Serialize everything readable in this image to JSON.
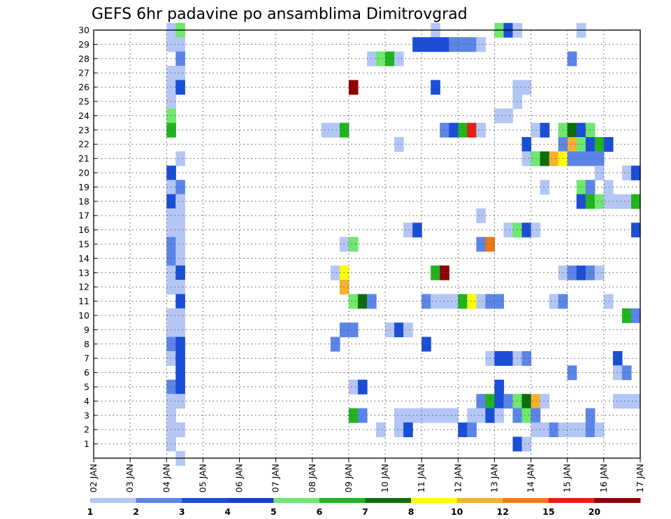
{
  "chart_data": {
    "type": "heatmap",
    "title": "GEFS 6hr padavine po ansamblima Dimitrovgrad",
    "xlabel": "",
    "ylabel": "",
    "x_tick_labels": [
      "02 JAN",
      "03 JAN",
      "04 JAN",
      "05 JAN",
      "06 JAN",
      "07 JAN",
      "08 JAN",
      "09 JAN",
      "10 JAN",
      "11 JAN",
      "12 JAN",
      "13 JAN",
      "14 JAN",
      "15 JAN",
      "16 JAN",
      "17 JAN"
    ],
    "xlim_days": [
      2,
      17
    ],
    "x_step_hours": 6,
    "y_tick_labels": [
      "1",
      "2",
      "3",
      "4",
      "5",
      "6",
      "7",
      "8",
      "9",
      "10",
      "11",
      "12",
      "13",
      "14",
      "15",
      "16",
      "17",
      "18",
      "19",
      "20",
      "21",
      "22",
      "23",
      "24",
      "25",
      "26",
      "27",
      "28",
      "29",
      "30"
    ],
    "ylim": [
      0,
      30
    ],
    "grid": true,
    "legend": {
      "placement": "bottom",
      "labels": [
        "1",
        "2",
        "3",
        "4",
        "5",
        "6",
        "7",
        "8",
        "10",
        "12",
        "15",
        "20"
      ],
      "colors": [
        "#b3c6f5",
        "#5c85e8",
        "#1a4ed8",
        "#1a3dd6",
        "#6ee86e",
        "#20b420",
        "#0a6e0a",
        "#ffff00",
        "#f8b030",
        "#f07814",
        "#e02010",
        "#900000"
      ]
    },
    "cells": [
      [
        4.0,
        30,
        1
      ],
      [
        4.25,
        30,
        5
      ],
      [
        11.25,
        30,
        1
      ],
      [
        13.0,
        30,
        5
      ],
      [
        13.25,
        30,
        3
      ],
      [
        13.5,
        30,
        1
      ],
      [
        15.25,
        30,
        1
      ],
      [
        4.0,
        29,
        1
      ],
      [
        4.25,
        29,
        1
      ],
      [
        10.75,
        29,
        3
      ],
      [
        11.0,
        29,
        3
      ],
      [
        11.25,
        29,
        3
      ],
      [
        11.5,
        29,
        3
      ],
      [
        11.75,
        29,
        2
      ],
      [
        12.0,
        29,
        2
      ],
      [
        12.25,
        29,
        2
      ],
      [
        12.5,
        29,
        1
      ],
      [
        4.25,
        28,
        2
      ],
      [
        9.5,
        28,
        1
      ],
      [
        9.75,
        28,
        5
      ],
      [
        10.0,
        28,
        6
      ],
      [
        10.25,
        28,
        1
      ],
      [
        15.0,
        28,
        2
      ],
      [
        4.0,
        27,
        1
      ],
      [
        4.25,
        27,
        1
      ],
      [
        4.0,
        26,
        1
      ],
      [
        4.25,
        26,
        3
      ],
      [
        9.0,
        26,
        20
      ],
      [
        11.25,
        26,
        3
      ],
      [
        13.5,
        26,
        1
      ],
      [
        13.75,
        26,
        1
      ],
      [
        4.0,
        25,
        1
      ],
      [
        13.5,
        25,
        1
      ],
      [
        4.0,
        24,
        5
      ],
      [
        13.0,
        24,
        1
      ],
      [
        13.25,
        24,
        1
      ],
      [
        4.0,
        23,
        6
      ],
      [
        8.25,
        23,
        1
      ],
      [
        8.5,
        23,
        1
      ],
      [
        8.75,
        23,
        6
      ],
      [
        11.5,
        23,
        2
      ],
      [
        11.75,
        23,
        3
      ],
      [
        12.0,
        23,
        6
      ],
      [
        12.25,
        23,
        15
      ],
      [
        12.5,
        23,
        1
      ],
      [
        14.0,
        23,
        1
      ],
      [
        14.25,
        23,
        3
      ],
      [
        14.75,
        23,
        5
      ],
      [
        15.0,
        23,
        7
      ],
      [
        15.25,
        23,
        3
      ],
      [
        15.5,
        23,
        5
      ],
      [
        10.25,
        22,
        1
      ],
      [
        13.75,
        22,
        3
      ],
      [
        14.75,
        22,
        2
      ],
      [
        15.0,
        22,
        10
      ],
      [
        15.25,
        22,
        5
      ],
      [
        15.5,
        22,
        3
      ],
      [
        15.75,
        22,
        6
      ],
      [
        16.0,
        22,
        3
      ],
      [
        4.25,
        21,
        1
      ],
      [
        13.75,
        21,
        1
      ],
      [
        14.0,
        21,
        5
      ],
      [
        14.25,
        21,
        7
      ],
      [
        14.5,
        21,
        10
      ],
      [
        14.75,
        21,
        8
      ],
      [
        15.0,
        21,
        2
      ],
      [
        15.25,
        21,
        2
      ],
      [
        15.5,
        21,
        2
      ],
      [
        15.75,
        21,
        2
      ],
      [
        4.0,
        20,
        3
      ],
      [
        15.75,
        20,
        1
      ],
      [
        16.5,
        20,
        1
      ],
      [
        16.75,
        20,
        3
      ],
      [
        4.0,
        19,
        1
      ],
      [
        4.25,
        19,
        2
      ],
      [
        14.25,
        19,
        1
      ],
      [
        15.25,
        19,
        5
      ],
      [
        15.5,
        19,
        2
      ],
      [
        16.0,
        19,
        1
      ],
      [
        4.0,
        18,
        3
      ],
      [
        4.25,
        18,
        1
      ],
      [
        15.25,
        18,
        3
      ],
      [
        15.5,
        18,
        6
      ],
      [
        15.75,
        18,
        5
      ],
      [
        16.0,
        18,
        1
      ],
      [
        16.25,
        18,
        1
      ],
      [
        16.5,
        18,
        1
      ],
      [
        16.75,
        18,
        6
      ],
      [
        4.0,
        17,
        1
      ],
      [
        4.25,
        17,
        1
      ],
      [
        12.5,
        17,
        1
      ],
      [
        4.0,
        16,
        1
      ],
      [
        4.25,
        16,
        1
      ],
      [
        10.5,
        16,
        1
      ],
      [
        10.75,
        16,
        3
      ],
      [
        13.25,
        16,
        1
      ],
      [
        13.5,
        16,
        5
      ],
      [
        13.75,
        16,
        3
      ],
      [
        14.0,
        16,
        1
      ],
      [
        16.75,
        16,
        3
      ],
      [
        4.0,
        15,
        2
      ],
      [
        4.25,
        15,
        1
      ],
      [
        8.75,
        15,
        1
      ],
      [
        9.0,
        15,
        5
      ],
      [
        12.5,
        15,
        2
      ],
      [
        12.75,
        15,
        12
      ],
      [
        4.0,
        14,
        2
      ],
      [
        4.25,
        14,
        1
      ],
      [
        4.0,
        13,
        1
      ],
      [
        4.25,
        13,
        3
      ],
      [
        8.5,
        13,
        1
      ],
      [
        8.75,
        13,
        8
      ],
      [
        11.25,
        13,
        6
      ],
      [
        11.5,
        13,
        20
      ],
      [
        14.75,
        13,
        1
      ],
      [
        15.0,
        13,
        2
      ],
      [
        15.25,
        13,
        3
      ],
      [
        15.5,
        13,
        2
      ],
      [
        15.75,
        13,
        1
      ],
      [
        4.0,
        12,
        1
      ],
      [
        4.25,
        12,
        1
      ],
      [
        8.75,
        12,
        10
      ],
      [
        4.25,
        11,
        3
      ],
      [
        9.0,
        11,
        5
      ],
      [
        9.25,
        11,
        7
      ],
      [
        9.5,
        11,
        2
      ],
      [
        11.0,
        11,
        2
      ],
      [
        11.25,
        11,
        1
      ],
      [
        11.5,
        11,
        1
      ],
      [
        11.75,
        11,
        1
      ],
      [
        12.0,
        11,
        6
      ],
      [
        12.25,
        11,
        8
      ],
      [
        12.5,
        11,
        1
      ],
      [
        12.75,
        11,
        2
      ],
      [
        13.0,
        11,
        2
      ],
      [
        14.5,
        11,
        1
      ],
      [
        14.75,
        11,
        2
      ],
      [
        16.0,
        11,
        1
      ],
      [
        4.0,
        10,
        1
      ],
      [
        4.25,
        10,
        1
      ],
      [
        16.5,
        10,
        6
      ],
      [
        16.75,
        10,
        2
      ],
      [
        4.0,
        9,
        1
      ],
      [
        4.25,
        9,
        1
      ],
      [
        8.75,
        9,
        2
      ],
      [
        9.0,
        9,
        2
      ],
      [
        10.0,
        9,
        1
      ],
      [
        10.25,
        9,
        3
      ],
      [
        10.5,
        9,
        1
      ],
      [
        4.0,
        8,
        2
      ],
      [
        4.25,
        8,
        3
      ],
      [
        8.5,
        8,
        2
      ],
      [
        11.0,
        8,
        3
      ],
      [
        4.0,
        7,
        1
      ],
      [
        4.25,
        7,
        3
      ],
      [
        12.75,
        7,
        1
      ],
      [
        13.0,
        7,
        3
      ],
      [
        13.25,
        7,
        3
      ],
      [
        13.5,
        7,
        1
      ],
      [
        13.75,
        7,
        2
      ],
      [
        16.25,
        7,
        3
      ],
      [
        4.25,
        6,
        3
      ],
      [
        15.0,
        6,
        2
      ],
      [
        16.25,
        6,
        1
      ],
      [
        16.5,
        6,
        2
      ],
      [
        4.0,
        5,
        2
      ],
      [
        4.25,
        5,
        3
      ],
      [
        9.0,
        5,
        1
      ],
      [
        9.25,
        5,
        3
      ],
      [
        13.0,
        5,
        3
      ],
      [
        4.0,
        4,
        1
      ],
      [
        4.25,
        4,
        1
      ],
      [
        12.5,
        4,
        2
      ],
      [
        12.75,
        4,
        6
      ],
      [
        13.0,
        4,
        3
      ],
      [
        13.25,
        4,
        2
      ],
      [
        13.5,
        4,
        5
      ],
      [
        13.75,
        4,
        7
      ],
      [
        14.0,
        4,
        10
      ],
      [
        14.25,
        4,
        1
      ],
      [
        16.25,
        4,
        1
      ],
      [
        16.5,
        4,
        1
      ],
      [
        16.75,
        4,
        1
      ],
      [
        4.0,
        3,
        1
      ],
      [
        9.0,
        3,
        6
      ],
      [
        9.25,
        3,
        2
      ],
      [
        10.25,
        3,
        1
      ],
      [
        10.5,
        3,
        1
      ],
      [
        10.75,
        3,
        1
      ],
      [
        11.0,
        3,
        1
      ],
      [
        11.25,
        3,
        1
      ],
      [
        11.5,
        3,
        1
      ],
      [
        11.75,
        3,
        1
      ],
      [
        12.25,
        3,
        1
      ],
      [
        12.5,
        3,
        1
      ],
      [
        12.75,
        3,
        3
      ],
      [
        13.0,
        3,
        1
      ],
      [
        13.5,
        3,
        2
      ],
      [
        13.75,
        3,
        5
      ],
      [
        14.0,
        3,
        2
      ],
      [
        15.5,
        3,
        2
      ],
      [
        4.0,
        2,
        1
      ],
      [
        4.25,
        2,
        1
      ],
      [
        9.75,
        2,
        1
      ],
      [
        10.25,
        2,
        1
      ],
      [
        10.5,
        2,
        3
      ],
      [
        12.0,
        2,
        3
      ],
      [
        12.25,
        2,
        2
      ],
      [
        14.0,
        2,
        1
      ],
      [
        14.25,
        2,
        1
      ],
      [
        14.5,
        2,
        2
      ],
      [
        14.75,
        2,
        1
      ],
      [
        15.0,
        2,
        1
      ],
      [
        15.25,
        2,
        1
      ],
      [
        15.5,
        2,
        2
      ],
      [
        15.75,
        2,
        1
      ],
      [
        4.0,
        1,
        1
      ],
      [
        13.5,
        1,
        3
      ],
      [
        13.75,
        1,
        1
      ],
      [
        4.25,
        0,
        1
      ]
    ]
  }
}
